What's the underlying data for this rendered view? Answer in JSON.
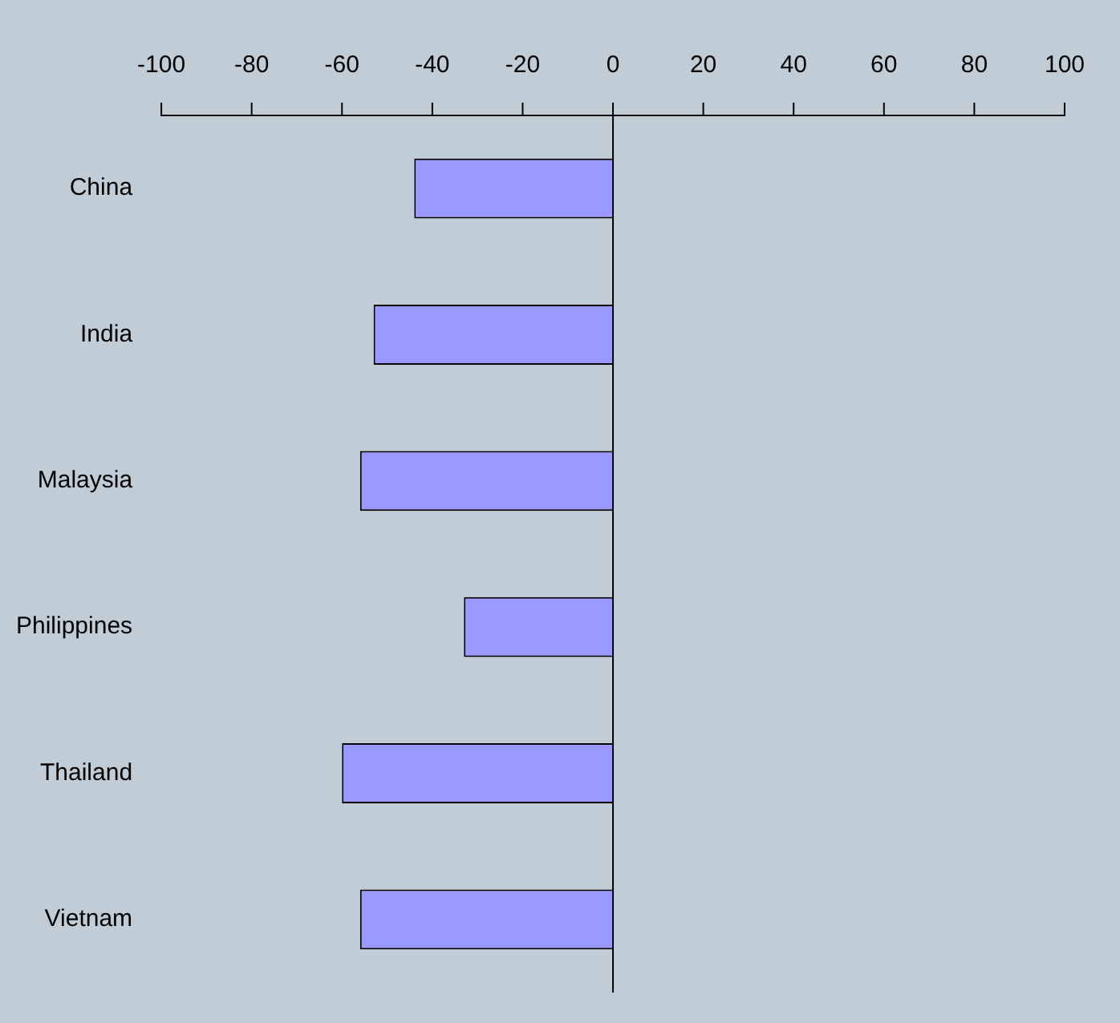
{
  "chart_data": {
    "type": "bar",
    "orientation": "horizontal",
    "categories": [
      "China",
      "India",
      "Malaysia",
      "Philippines",
      "Thailand",
      "Vietnam"
    ],
    "values": [
      -44,
      -53,
      -56,
      -33,
      -60,
      -56
    ],
    "color": "#9999ff",
    "xlim": [
      -100,
      100
    ],
    "xticks": [
      -100,
      -80,
      -60,
      -40,
      -20,
      0,
      20,
      40,
      60,
      80,
      100
    ],
    "legend": false
  }
}
